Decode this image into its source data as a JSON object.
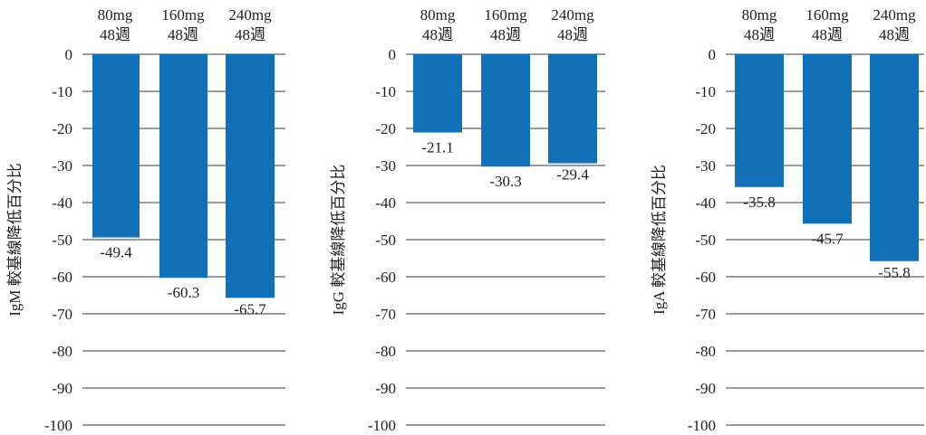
{
  "chart_data": [
    {
      "type": "bar",
      "ylabel": "IgM 較基線降低百分比",
      "categories": [
        "80mg\n48週",
        "160mg\n48週",
        "240mg\n48週"
      ],
      "values": [
        -49.4,
        -60.3,
        -65.7
      ],
      "data_labels": [
        "-49.4",
        "-60.3",
        "-65.7"
      ],
      "ylim": [
        -100,
        0
      ],
      "yticks": [
        "0",
        "-10",
        "-20",
        "-30",
        "-40",
        "-50",
        "-60",
        "-70",
        "-80",
        "-90",
        "-100"
      ],
      "bar_color": "#1170b8",
      "grid": true
    },
    {
      "type": "bar",
      "ylabel": "IgG 較基線降低百分比",
      "categories": [
        "80mg\n48週",
        "160mg\n48週",
        "240mg\n48週"
      ],
      "values": [
        -21.1,
        -30.3,
        -29.4
      ],
      "data_labels": [
        "-21.1",
        "-30.3",
        "-29.4"
      ],
      "ylim": [
        -100,
        0
      ],
      "yticks": [
        "0",
        "-10",
        "-20",
        "-30",
        "-40",
        "-50",
        "-60",
        "-70",
        "-80",
        "-90",
        "-100"
      ],
      "bar_color": "#1170b8",
      "grid": true
    },
    {
      "type": "bar",
      "ylabel": "IgA 較基線降低百分比",
      "categories": [
        "80mg\n48週",
        "160mg\n48週",
        "240mg\n48週"
      ],
      "values": [
        -35.8,
        -45.7,
        -55.8
      ],
      "data_labels": [
        "-35.8",
        "-45.7",
        "-55.8"
      ],
      "ylim": [
        -100,
        0
      ],
      "yticks": [
        "0",
        "-10",
        "-20",
        "-30",
        "-40",
        "-50",
        "-60",
        "-70",
        "-80",
        "-90",
        "-100"
      ],
      "bar_color": "#1170b8",
      "grid": true
    }
  ]
}
